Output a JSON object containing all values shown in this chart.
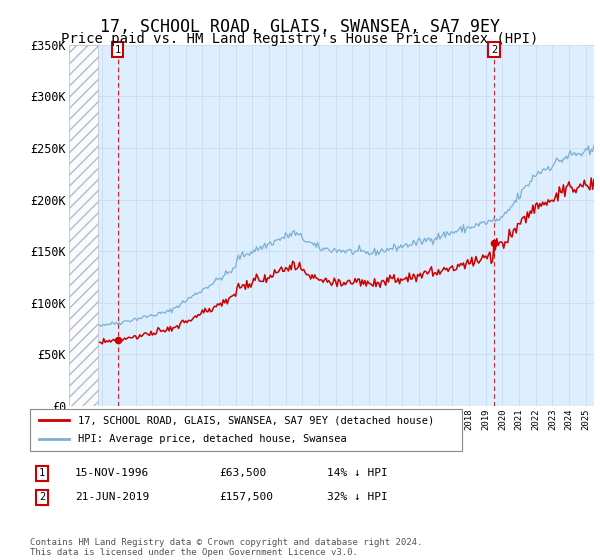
{
  "title": "17, SCHOOL ROAD, GLAIS, SWANSEA, SA7 9EY",
  "subtitle": "Price paid vs. HM Land Registry's House Price Index (HPI)",
  "ylim": [
    0,
    350000
  ],
  "yticks": [
    0,
    50000,
    100000,
    150000,
    200000,
    250000,
    300000,
    350000
  ],
  "ytick_labels": [
    "£0",
    "£50K",
    "£100K",
    "£150K",
    "£200K",
    "£250K",
    "£300K",
    "£350K"
  ],
  "sale1_date_num": 1996.88,
  "sale1_price": 63500,
  "sale1_label": "1",
  "sale1_date_str": "15-NOV-1996",
  "sale1_price_str": "£63,500",
  "sale1_pct_str": "14% ↓ HPI",
  "sale2_date_num": 2019.47,
  "sale2_price": 157500,
  "sale2_label": "2",
  "sale2_date_str": "21-JUN-2019",
  "sale2_price_str": "£157,500",
  "sale2_pct_str": "32% ↓ HPI",
  "hpi_color": "#7bafd4",
  "sale_color": "#cc0000",
  "point_color": "#cc0000",
  "grid_color": "#c8d8e8",
  "bg_color": "#ddeeff",
  "legend_label_sale": "17, SCHOOL ROAD, GLAIS, SWANSEA, SA7 9EY (detached house)",
  "legend_label_hpi": "HPI: Average price, detached house, Swansea",
  "footer": "Contains HM Land Registry data © Crown copyright and database right 2024.\nThis data is licensed under the Open Government Licence v3.0.",
  "xlim_start": 1994.0,
  "xlim_end": 2025.5,
  "hatch_end": 1995.75,
  "title_fontsize": 12,
  "subtitle_fontsize": 10,
  "axis_fontsize": 8.5
}
